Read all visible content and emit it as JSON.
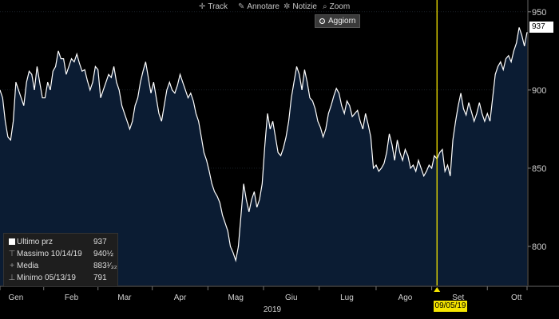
{
  "toolbar": {
    "items": [
      {
        "label": "Track",
        "icon": "crosshair-icon"
      },
      {
        "label": "Annotare",
        "icon": "pencil-icon"
      },
      {
        "label": "Notizie",
        "icon": "gear-icon"
      },
      {
        "label": "Zoom",
        "icon": "magnifier-icon"
      }
    ],
    "refresh_label": "Aggiorn"
  },
  "legend": {
    "rows": [
      {
        "label": "Ultimo prz",
        "value": "937"
      },
      {
        "label": "Massimo 10/14/19",
        "value": "940½"
      },
      {
        "label": "Media",
        "value": "883¹⁄₃₂"
      },
      {
        "label": "Minimo 05/13/19",
        "value": "791"
      }
    ]
  },
  "last_price_label": "937",
  "cursor_date_label": "09/05/19",
  "colors": {
    "line": "#ffffff",
    "fill": "#0b1c33",
    "background": "#000000",
    "marker": "#f5e500",
    "grid": "#2a3440"
  },
  "chart_data": {
    "type": "area",
    "x_unit": "trading day index (Jan 2019 – Oct 2019)",
    "y": [
      900,
      895,
      880,
      870,
      868,
      880,
      905,
      900,
      895,
      890,
      905,
      912,
      910,
      900,
      915,
      905,
      895,
      895,
      905,
      900,
      912,
      915,
      925,
      920,
      920,
      910,
      915,
      920,
      918,
      923,
      917,
      912,
      913,
      906,
      900,
      905,
      915,
      913,
      895,
      900,
      905,
      910,
      908,
      915,
      905,
      900,
      890,
      885,
      880,
      875,
      880,
      890,
      895,
      905,
      912,
      918,
      908,
      898,
      905,
      895,
      885,
      880,
      890,
      900,
      905,
      900,
      898,
      903,
      910,
      905,
      900,
      895,
      898,
      893,
      885,
      880,
      870,
      860,
      855,
      848,
      840,
      835,
      832,
      828,
      820,
      815,
      810,
      800,
      796,
      791,
      800,
      820,
      840,
      830,
      822,
      830,
      835,
      825,
      830,
      840,
      865,
      885,
      875,
      880,
      870,
      860,
      858,
      863,
      870,
      880,
      895,
      905,
      915,
      910,
      900,
      913,
      905,
      895,
      893,
      888,
      880,
      876,
      870,
      875,
      885,
      890,
      896,
      901,
      898,
      890,
      885,
      893,
      890,
      883,
      885,
      887,
      880,
      875,
      885,
      878,
      870,
      850,
      852,
      848,
      850,
      853,
      860,
      872,
      865,
      855,
      868,
      860,
      855,
      862,
      858,
      850,
      852,
      848,
      855,
      850,
      845,
      848,
      852,
      850,
      858,
      856,
      860,
      862,
      848,
      852,
      845,
      868,
      880,
      890,
      898,
      888,
      884,
      892,
      886,
      880,
      885,
      892,
      885,
      880,
      885,
      880,
      895,
      910,
      915,
      918,
      913,
      920,
      922,
      918,
      925,
      930,
      940,
      935,
      928,
      937
    ],
    "ylim": [
      775,
      955
    ],
    "yticks": [
      800,
      850,
      900,
      950
    ],
    "xtick_labels": [
      "Gen",
      "Feb",
      "Mar",
      "Apr",
      "Mag",
      "Giu",
      "Lug",
      "Ago",
      "Set",
      "Ott"
    ],
    "xtick_index": [
      6,
      27,
      47,
      68,
      89,
      110,
      131,
      153,
      173,
      195
    ],
    "year_label": "2019",
    "marker_index": 165,
    "last_value": 937,
    "grid": true
  }
}
